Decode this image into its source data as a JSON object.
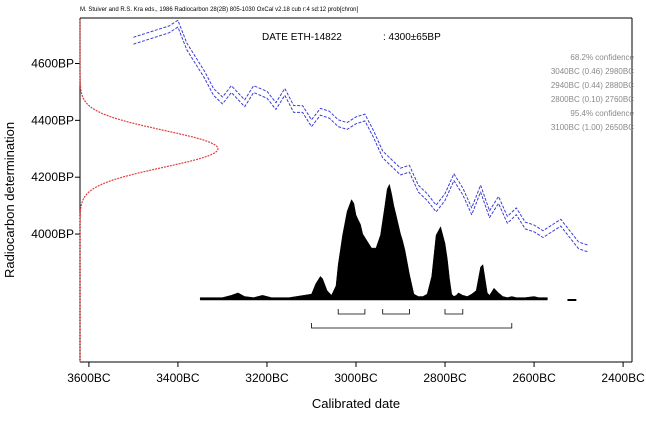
{
  "chart_data": {
    "type": "area",
    "header_citation": "M. Stuiver and R.S. Kra eds., 1986 Radiocarbon 28(2B) 805-1030   OxCal v2.18 cub r:4 sd:12 prob[chron]",
    "date_label": "DATE ETH-14822",
    "date_value": ": 4300±65BP",
    "xlabel": "Calibrated date",
    "ylabel": "Radiocarbon determination",
    "x_ticks": [
      "3600BC",
      "3400BC",
      "3200BC",
      "3000BC",
      "2800BC",
      "2600BC",
      "2400BC"
    ],
    "y_ticks": [
      "4600BP",
      "4400BP",
      "4200BP",
      "4000BP"
    ],
    "xlim": [
      -3620,
      -2380
    ],
    "ylim": [
      3550,
      4760
    ],
    "confidence_lines": [
      "68.2% confidence",
      "3040BC (0.46) 2980BC",
      "2940BC (0.44) 2880BC",
      "2800BC (0.10) 2760BC",
      "95.4% confidence",
      "3100BC (1.00) 2650BC"
    ],
    "radiocarbon_measurement": {
      "mean_bp": 4300,
      "sigma_bp": 65
    },
    "calibration_curve": {
      "x": [
        -3500,
        -3460,
        -3420,
        -3400,
        -3380,
        -3340,
        -3320,
        -3300,
        -3280,
        -3250,
        -3230,
        -3200,
        -3180,
        -3160,
        -3140,
        -3120,
        -3100,
        -3080,
        -3060,
        -3040,
        -3020,
        -3000,
        -2980,
        -2960,
        -2940,
        -2920,
        -2900,
        -2880,
        -2860,
        -2840,
        -2820,
        -2800,
        -2780,
        -2760,
        -2740,
        -2720,
        -2700,
        -2680,
        -2660,
        -2640,
        -2620,
        -2600,
        -2580,
        -2560,
        -2540,
        -2520,
        -2500,
        -2480
      ],
      "y": [
        4680,
        4700,
        4720,
        4740,
        4660,
        4560,
        4500,
        4470,
        4510,
        4460,
        4510,
        4490,
        4450,
        4500,
        4440,
        4440,
        4390,
        4430,
        4420,
        4390,
        4380,
        4400,
        4410,
        4350,
        4280,
        4250,
        4220,
        4230,
        4160,
        4130,
        4090,
        4130,
        4200,
        4150,
        4080,
        4160,
        4070,
        4120,
        4050,
        4080,
        4030,
        4020,
        4000,
        4020,
        4040,
        4000,
        3960,
        3950
      ],
      "band_bp": 12
    },
    "probability_distribution": {
      "x": [
        -3350,
        -3300,
        -3280,
        -3265,
        -3250,
        -3230,
        -3210,
        -3190,
        -3150,
        -3100,
        -3090,
        -3080,
        -3075,
        -3065,
        -3055,
        -3045,
        -3040,
        -3030,
        -3020,
        -3010,
        -3005,
        -3000,
        -2995,
        -2990,
        -2985,
        -2975,
        -2965,
        -2955,
        -2945,
        -2935,
        -2930,
        -2925,
        -2920,
        -2915,
        -2910,
        -2905,
        -2900,
        -2895,
        -2890,
        -2880,
        -2870,
        -2860,
        -2850,
        -2840,
        -2830,
        -2820,
        -2810,
        -2800,
        -2795,
        -2790,
        -2785,
        -2780,
        -2775,
        -2770,
        -2765,
        -2760,
        -2750,
        -2740,
        -2730,
        -2720,
        -2715,
        -2710,
        -2705,
        -2700,
        -2695,
        -2690,
        -2680,
        -2670,
        -2660,
        -2650,
        -2640,
        -2620,
        -2600,
        -2590,
        -2570
      ],
      "p": [
        0.02,
        0.02,
        0.04,
        0.06,
        0.03,
        0.02,
        0.04,
        0.02,
        0.02,
        0.05,
        0.14,
        0.2,
        0.18,
        0.08,
        0.04,
        0.12,
        0.3,
        0.55,
        0.75,
        0.85,
        0.82,
        0.72,
        0.68,
        0.64,
        0.56,
        0.5,
        0.44,
        0.44,
        0.55,
        0.8,
        0.94,
        0.98,
        0.9,
        0.8,
        0.72,
        0.64,
        0.56,
        0.5,
        0.42,
        0.22,
        0.05,
        0.03,
        0.03,
        0.05,
        0.2,
        0.55,
        0.62,
        0.48,
        0.35,
        0.18,
        0.05,
        0.03,
        0.04,
        0.06,
        0.05,
        0.04,
        0.03,
        0.05,
        0.08,
        0.28,
        0.3,
        0.18,
        0.06,
        0.04,
        0.07,
        0.1,
        0.06,
        0.03,
        0.02,
        0.03,
        0.02,
        0.02,
        0.03,
        0.02,
        0.02
      ]
    },
    "range_68": [
      [
        -3040,
        -2980
      ],
      [
        -2940,
        -2880
      ],
      [
        -2800,
        -2760
      ]
    ],
    "range_95": [
      [
        -3100,
        -2650
      ]
    ],
    "colors": {
      "calibration_curve": "#3b3bd6",
      "measurement": "#e04040",
      "distribution": "#000000",
      "axes": "#000000"
    }
  }
}
